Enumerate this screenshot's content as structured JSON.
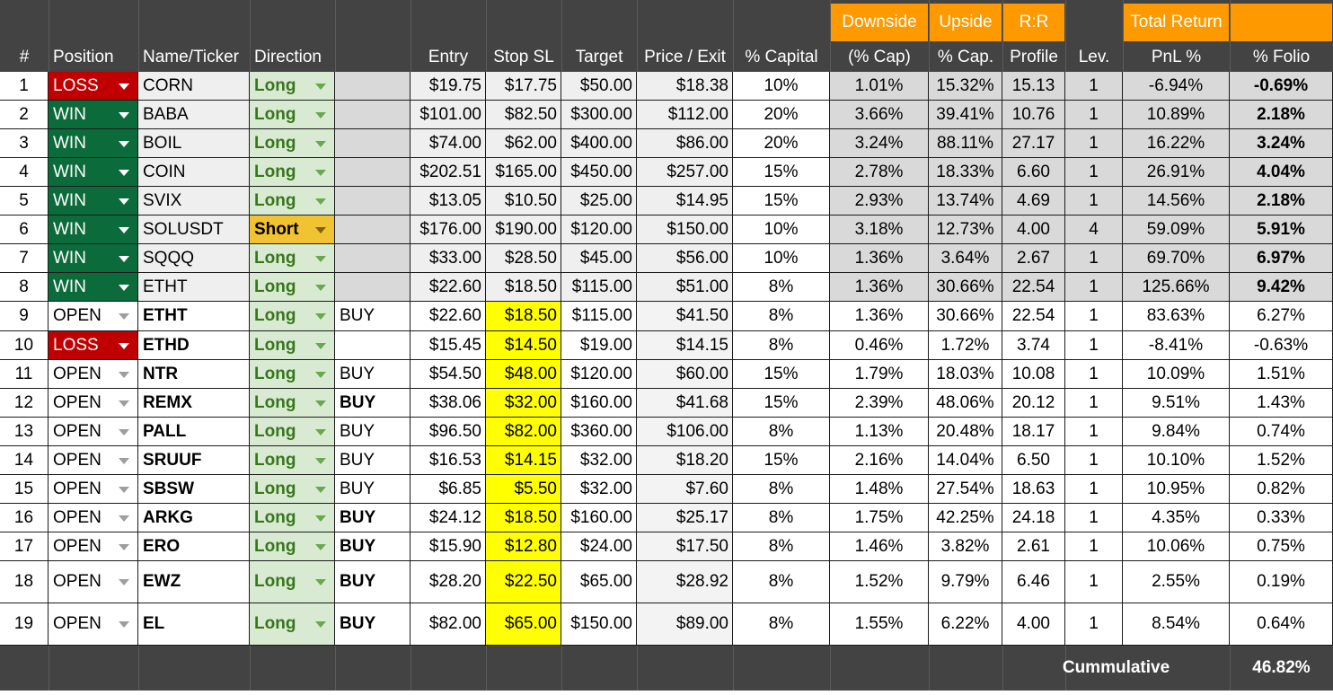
{
  "header": {
    "top": [
      "",
      "",
      "",
      "",
      "",
      "",
      "",
      "",
      "",
      "Downside",
      "Upside",
      "R:R",
      "",
      "Total Return",
      ""
    ],
    "labels": [
      "#",
      "Position",
      "Name/Ticker",
      "Direction",
      "",
      "Entry",
      "Stop SL",
      "Target",
      "Price / Exit",
      "% Capital",
      "(% Cap)",
      "% Cap.",
      "Profile",
      "Lev.",
      "PnL %",
      "% Folio"
    ]
  },
  "rows": [
    {
      "n": "1",
      "pos": "LOSS",
      "tick": "CORN",
      "dir": "Long",
      "sig": "",
      "entry": "$19.75",
      "stop": "$17.75",
      "target": "$50.00",
      "price": "$18.38",
      "cap": "10%",
      "down": "1.01%",
      "up": "15.32%",
      "rr": "15.13",
      "lev": "1",
      "pnl": "-6.94%",
      "folio": "-0.69%",
      "closed": true,
      "tick_bold": false,
      "sig_bold": false
    },
    {
      "n": "2",
      "pos": "WIN",
      "tick": "BABA",
      "dir": "Long",
      "sig": "",
      "entry": "$101.00",
      "stop": "$82.50",
      "target": "$300.00",
      "price": "$112.00",
      "cap": "20%",
      "down": "3.66%",
      "up": "39.41%",
      "rr": "10.76",
      "lev": "1",
      "pnl": "10.89%",
      "folio": "2.18%",
      "closed": true,
      "tick_bold": false,
      "sig_bold": false
    },
    {
      "n": "3",
      "pos": "WIN",
      "tick": "BOIL",
      "dir": "Long",
      "sig": "",
      "entry": "$74.00",
      "stop": "$62.00",
      "target": "$400.00",
      "price": "$86.00",
      "cap": "20%",
      "down": "3.24%",
      "up": "88.11%",
      "rr": "27.17",
      "lev": "1",
      "pnl": "16.22%",
      "folio": "3.24%",
      "closed": true,
      "tick_bold": false,
      "sig_bold": false
    },
    {
      "n": "4",
      "pos": "WIN",
      "tick": "COIN",
      "dir": "Long",
      "sig": "",
      "entry": "$202.51",
      "stop": "$165.00",
      "target": "$450.00",
      "price": "$257.00",
      "cap": "15%",
      "down": "2.78%",
      "up": "18.33%",
      "rr": "6.60",
      "lev": "1",
      "pnl": "26.91%",
      "folio": "4.04%",
      "closed": true,
      "tick_bold": false,
      "sig_bold": false
    },
    {
      "n": "5",
      "pos": "WIN",
      "tick": "SVIX",
      "dir": "Long",
      "sig": "",
      "entry": "$13.05",
      "stop": "$10.50",
      "target": "$25.00",
      "price": "$14.95",
      "cap": "15%",
      "down": "2.93%",
      "up": "13.74%",
      "rr": "4.69",
      "lev": "1",
      "pnl": "14.56%",
      "folio": "2.18%",
      "closed": true,
      "tick_bold": false,
      "sig_bold": false
    },
    {
      "n": "6",
      "pos": "WIN",
      "tick": "SOLUSDT",
      "dir": "Short",
      "sig": "",
      "entry": "$176.00",
      "stop": "$190.00",
      "target": "$120.00",
      "price": "$150.00",
      "cap": "10%",
      "down": "3.18%",
      "up": "12.73%",
      "rr": "4.00",
      "lev": "4",
      "pnl": "59.09%",
      "folio": "5.91%",
      "closed": true,
      "tick_bold": false,
      "sig_bold": false
    },
    {
      "n": "7",
      "pos": "WIN",
      "tick": "SQQQ",
      "dir": "Long",
      "sig": "",
      "entry": "$33.00",
      "stop": "$28.50",
      "target": "$45.00",
      "price": "$56.00",
      "cap": "10%",
      "down": "1.36%",
      "up": "3.64%",
      "rr": "2.67",
      "lev": "1",
      "pnl": "69.70%",
      "folio": "6.97%",
      "closed": true,
      "tick_bold": false,
      "sig_bold": false
    },
    {
      "n": "8",
      "pos": "WIN",
      "tick": "ETHT",
      "dir": "Long",
      "sig": "",
      "entry": "$22.60",
      "stop": "$18.50",
      "target": "$115.00",
      "price": "$51.00",
      "cap": "8%",
      "down": "1.36%",
      "up": "30.66%",
      "rr": "22.54",
      "lev": "1",
      "pnl": "125.66%",
      "folio": "9.42%",
      "closed": true,
      "tick_bold": false,
      "sig_bold": false
    },
    {
      "n": "9",
      "pos": "OPEN",
      "tick": "ETHT",
      "dir": "Long",
      "sig": "BUY",
      "entry": "$22.60",
      "stop": "$18.50",
      "target": "$115.00",
      "price": "$41.50",
      "cap": "8%",
      "down": "1.36%",
      "up": "30.66%",
      "rr": "22.54",
      "lev": "1",
      "pnl": "83.63%",
      "folio": "6.27%",
      "closed": false,
      "tick_bold": true,
      "sig_bold": false
    },
    {
      "n": "10",
      "pos": "LOSS",
      "tick": "ETHD",
      "dir": "Long",
      "sig": "",
      "entry": "$15.45",
      "stop": "$14.50",
      "target": "$19.00",
      "price": "$14.15",
      "cap": "8%",
      "down": "0.46%",
      "up": "1.72%",
      "rr": "3.74",
      "lev": "1",
      "pnl": "-8.41%",
      "folio": "-0.63%",
      "closed": false,
      "tick_bold": true,
      "sig_bold": false
    },
    {
      "n": "11",
      "pos": "OPEN",
      "tick": "NTR",
      "dir": "Long",
      "sig": "BUY",
      "entry": "$54.50",
      "stop": "$48.00",
      "target": "$120.00",
      "price": "$60.00",
      "cap": "15%",
      "down": "1.79%",
      "up": "18.03%",
      "rr": "10.08",
      "lev": "1",
      "pnl": "10.09%",
      "folio": "1.51%",
      "closed": false,
      "tick_bold": true,
      "sig_bold": false
    },
    {
      "n": "12",
      "pos": "OPEN",
      "tick": "REMX",
      "dir": "Long",
      "sig": "BUY",
      "entry": "$38.06",
      "stop": "$32.00",
      "target": "$160.00",
      "price": "$41.68",
      "cap": "15%",
      "down": "2.39%",
      "up": "48.06%",
      "rr": "20.12",
      "lev": "1",
      "pnl": "9.51%",
      "folio": "1.43%",
      "closed": false,
      "tick_bold": true,
      "sig_bold": true
    },
    {
      "n": "13",
      "pos": "OPEN",
      "tick": "PALL",
      "dir": "Long",
      "sig": "BUY",
      "entry": "$96.50",
      "stop": "$82.00",
      "target": "$360.00",
      "price": "$106.00",
      "cap": "8%",
      "down": "1.13%",
      "up": "20.48%",
      "rr": "18.17",
      "lev": "1",
      "pnl": "9.84%",
      "folio": "0.74%",
      "closed": false,
      "tick_bold": true,
      "sig_bold": false
    },
    {
      "n": "14",
      "pos": "OPEN",
      "tick": "SRUUF",
      "dir": "Long",
      "sig": "BUY",
      "entry": "$16.53",
      "stop": "$14.15",
      "target": "$32.00",
      "price": "$18.20",
      "cap": "15%",
      "down": "2.16%",
      "up": "14.04%",
      "rr": "6.50",
      "lev": "1",
      "pnl": "10.10%",
      "folio": "1.52%",
      "closed": false,
      "tick_bold": true,
      "sig_bold": false
    },
    {
      "n": "15",
      "pos": "OPEN",
      "tick": "SBSW",
      "dir": "Long",
      "sig": "BUY",
      "entry": "$6.85",
      "stop": "$5.50",
      "target": "$32.00",
      "price": "$7.60",
      "cap": "8%",
      "down": "1.48%",
      "up": "27.54%",
      "rr": "18.63",
      "lev": "1",
      "pnl": "10.95%",
      "folio": "0.82%",
      "closed": false,
      "tick_bold": true,
      "sig_bold": false
    },
    {
      "n": "16",
      "pos": "OPEN",
      "tick": "ARKG",
      "dir": "Long",
      "sig": "BUY",
      "entry": "$24.12",
      "stop": "$18.50",
      "target": "$160.00",
      "price": "$25.17",
      "cap": "8%",
      "down": "1.75%",
      "up": "42.25%",
      "rr": "24.18",
      "lev": "1",
      "pnl": "4.35%",
      "folio": "0.33%",
      "closed": false,
      "tick_bold": true,
      "sig_bold": true
    },
    {
      "n": "17",
      "pos": "OPEN",
      "tick": "ERO",
      "dir": "Long",
      "sig": "BUY",
      "entry": "$15.90",
      "stop": "$12.80",
      "target": "$24.00",
      "price": "$17.50",
      "cap": "8%",
      "down": "1.46%",
      "up": "3.82%",
      "rr": "2.61",
      "lev": "1",
      "pnl": "10.06%",
      "folio": "0.75%",
      "closed": false,
      "tick_bold": true,
      "sig_bold": true
    },
    {
      "n": "18",
      "pos": "OPEN",
      "tick": "EWZ",
      "dir": "Long",
      "sig": "BUY",
      "entry": "$28.20",
      "stop": "$22.50",
      "target": "$65.00",
      "price": "$28.92",
      "cap": "8%",
      "down": "1.52%",
      "up": "9.79%",
      "rr": "6.46",
      "lev": "1",
      "pnl": "2.55%",
      "folio": "0.19%",
      "closed": false,
      "tick_bold": true,
      "sig_bold": true
    },
    {
      "n": "19",
      "pos": "OPEN",
      "tick": "EL",
      "dir": "Long",
      "sig": "BUY",
      "entry": "$82.00",
      "stop": "$65.00",
      "target": "$150.00",
      "price": "$89.00",
      "cap": "8%",
      "down": "1.55%",
      "up": "6.22%",
      "rr": "4.00",
      "lev": "1",
      "pnl": "8.54%",
      "folio": "0.64%",
      "closed": false,
      "tick_bold": true,
      "sig_bold": true
    }
  ],
  "footer": {
    "label": "Cummulative",
    "value": "46.82%"
  },
  "colors": {
    "header_bg": "#434343",
    "orange": "#ff9900",
    "win": "#0b6b3a",
    "loss": "#c00000",
    "long_bg": "#d9ead3",
    "long_text": "#38761d",
    "short_bg": "#f1c232",
    "stop_highlight": "#ffff00",
    "closed_bg": "#efefef"
  }
}
